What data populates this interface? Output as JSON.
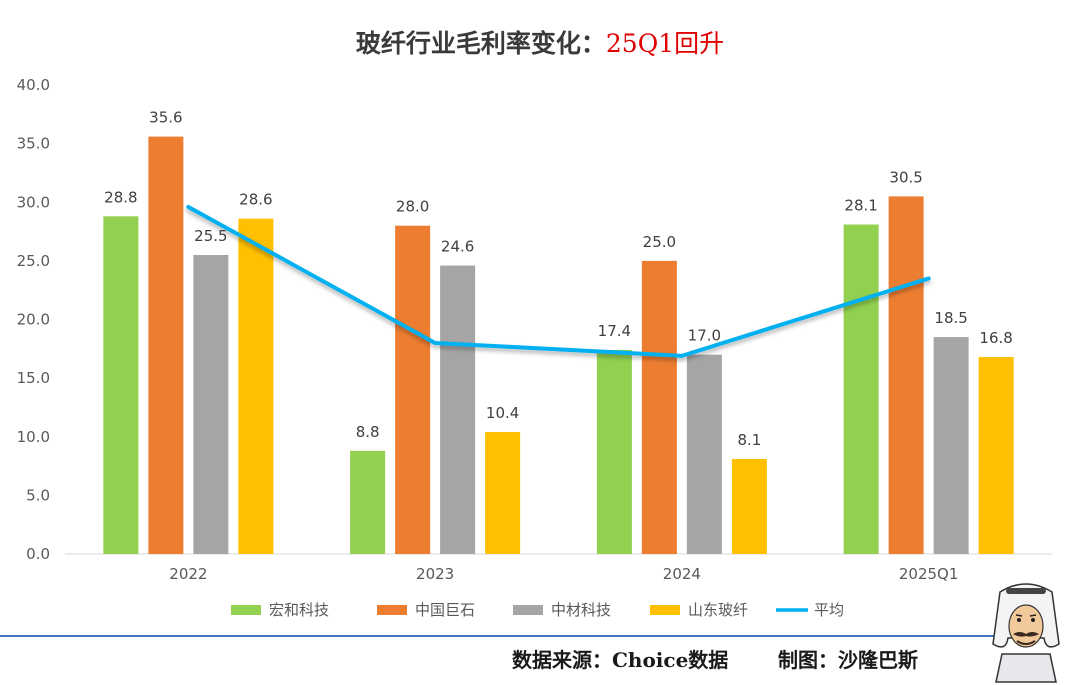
{
  "title": {
    "main": "玻纤行业毛利率变化：",
    "highlight": "25Q1回升",
    "highlight_color": "#e00000"
  },
  "footer": {
    "source": "数据来源：Choice数据",
    "author": "制图：沙隆巴斯",
    "mascot_icon": "mascot-avatar-icon"
  },
  "chart_data": {
    "type": "bar",
    "categories": [
      "2022",
      "2023",
      "2024",
      "2025Q1"
    ],
    "ylim": [
      0,
      40
    ],
    "yticks": [
      "0.0",
      "5.0",
      "10.0",
      "15.0",
      "20.0",
      "25.0",
      "30.0",
      "35.0",
      "40.0"
    ],
    "grid": false,
    "legend_position": "bottom",
    "series": [
      {
        "name": "宏和科技",
        "type": "bar",
        "color": "#92d050",
        "values": [
          28.8,
          8.8,
          17.4,
          28.1
        ],
        "labels": [
          "28.8",
          "8.8",
          "17.4",
          "28.1"
        ]
      },
      {
        "name": "中国巨石",
        "type": "bar",
        "color": "#ed7d31",
        "values": [
          35.6,
          28.0,
          25.0,
          30.5
        ],
        "labels": [
          "35.6",
          "28.0",
          "25.0",
          "30.5"
        ]
      },
      {
        "name": "中材科技",
        "type": "bar",
        "color": "#a5a5a5",
        "values": [
          25.5,
          24.6,
          17.0,
          18.5
        ],
        "labels": [
          "25.5",
          "24.6",
          "17.0",
          "18.5"
        ]
      },
      {
        "name": "山东玻纤",
        "type": "bar",
        "color": "#ffc000",
        "values": [
          28.6,
          10.4,
          8.1,
          16.8
        ],
        "labels": [
          "28.6",
          "10.4",
          "8.1",
          "16.8"
        ]
      },
      {
        "name": "平均",
        "type": "line",
        "color": "#00b0f0",
        "values": [
          29.6,
          18.0,
          16.9,
          23.5
        ]
      }
    ]
  }
}
